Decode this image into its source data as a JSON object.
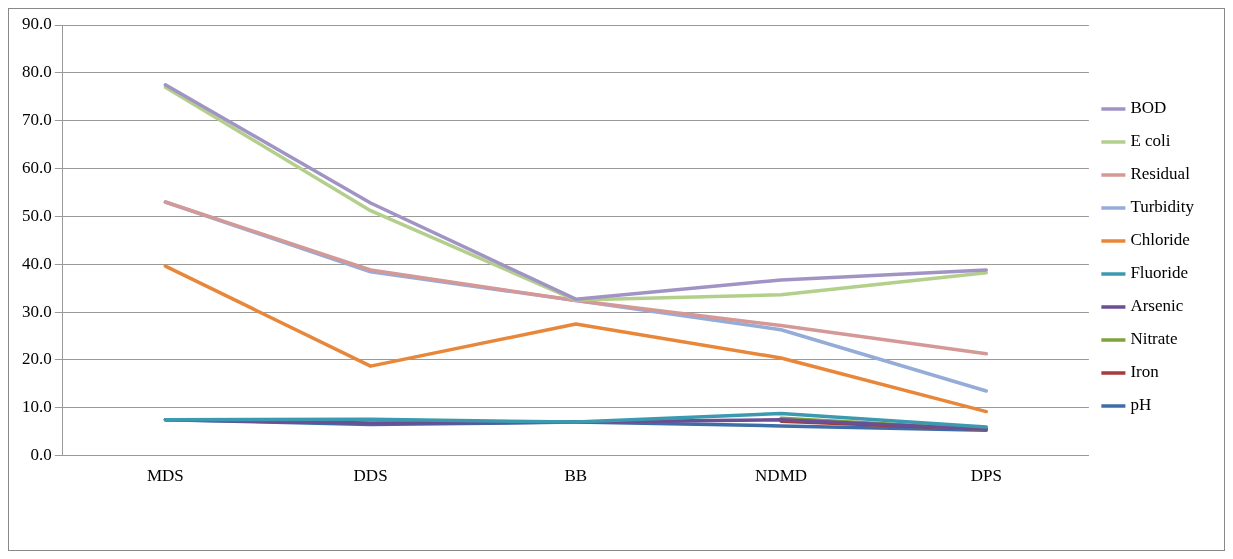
{
  "chart_data": {
    "type": "line",
    "categories": [
      "MDS",
      "DDS",
      "BB",
      "NDMD",
      "DPS"
    ],
    "series": [
      {
        "name": "BOD",
        "color": "#a193c4",
        "values": [
          77.5,
          52.8,
          32.7,
          36.7,
          38.8
        ]
      },
      {
        "name": "E coli",
        "color": "#b3cf8c",
        "values": [
          77.0,
          51.2,
          32.5,
          33.6,
          38.2
        ]
      },
      {
        "name": "Residual",
        "color": "#d49896",
        "values": [
          53.0,
          38.8,
          32.4,
          27.2,
          21.3
        ]
      },
      {
        "name": "Turbidity",
        "color": "#95acd8",
        "values": [
          53.0,
          38.4,
          32.4,
          26.3,
          13.5
        ]
      },
      {
        "name": "Chloride",
        "color": "#e8873a",
        "values": [
          39.6,
          18.7,
          27.5,
          20.4,
          9.2
        ]
      },
      {
        "name": "Fluoride",
        "color": "#3b9ab0",
        "values": [
          7.5,
          7.6,
          7.0,
          8.8,
          6.0
        ]
      },
      {
        "name": "Arsenic",
        "color": "#6c4e94",
        "values": [
          7.5,
          6.8,
          7.0,
          7.5,
          5.5
        ]
      },
      {
        "name": "Nitrate",
        "color": "#7da33c",
        "values": [
          null,
          null,
          null,
          7.8,
          5.5
        ]
      },
      {
        "name": "Iron",
        "color": "#a53b3a",
        "values": [
          null,
          null,
          null,
          7.2,
          5.5
        ]
      },
      {
        "name": "pH",
        "color": "#3d6ea8",
        "values": [
          7.5,
          6.5,
          7.0,
          6.2,
          5.3
        ]
      }
    ],
    "ylim": [
      0,
      90
    ],
    "yticks": [
      {
        "value": 0,
        "label": "0.0"
      },
      {
        "value": 10,
        "label": "10.0"
      },
      {
        "value": 20,
        "label": "20.0"
      },
      {
        "value": 30,
        "label": "30.0"
      },
      {
        "value": 40,
        "label": "40.0"
      },
      {
        "value": 50,
        "label": "50.0"
      },
      {
        "value": 60,
        "label": "60.0"
      },
      {
        "value": 70,
        "label": "70.0"
      },
      {
        "value": 80,
        "label": "80.0"
      },
      {
        "value": 90,
        "label": "90.0"
      }
    ],
    "grid": "y",
    "legend": "right",
    "marker": "none",
    "line_style": "solid"
  }
}
